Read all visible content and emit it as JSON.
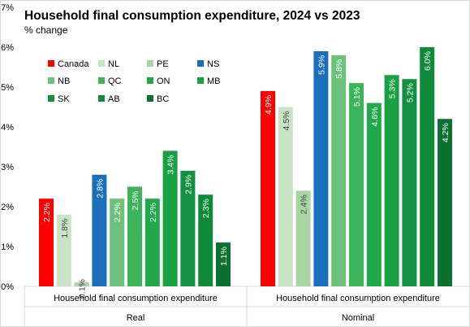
{
  "chart_data": {
    "type": "bar",
    "title": "Household final consumption expenditure, 2024 vs 2023",
    "subtitle": "% change",
    "ylim": [
      0,
      7
    ],
    "yticks": [
      "0%",
      "1%",
      "2%",
      "3%",
      "4%",
      "5%",
      "6%",
      "7%"
    ],
    "grid": false,
    "legend_position": "top-left (inside plot)",
    "categories": [
      "Household final consumption expenditure",
      "Household final consumption expenditure"
    ],
    "groups": [
      "Real",
      "Nominal"
    ],
    "series": [
      {
        "name": "Canada",
        "color": "#ff0000",
        "values": [
          2.2,
          4.9
        ],
        "labels": [
          "2.2%",
          "4.9%"
        ]
      },
      {
        "name": "NL",
        "color": "#c9e4c5",
        "values": [
          1.8,
          4.5
        ],
        "labels": [
          "1.8%",
          "4.5%"
        ]
      },
      {
        "name": "PE",
        "color": "#a8d5a2",
        "values": [
          0.1,
          2.4
        ],
        "labels": [
          "0.1%",
          "2.4%"
        ]
      },
      {
        "name": "NS",
        "color": "#1a6fba",
        "values": [
          2.8,
          5.9
        ],
        "labels": [
          "2.8%",
          "5.9%"
        ]
      },
      {
        "name": "NB",
        "color": "#6cc27a",
        "values": [
          2.2,
          5.8
        ],
        "labels": [
          "2.2%",
          "5.8%"
        ]
      },
      {
        "name": "QC",
        "color": "#3cb55a",
        "values": [
          2.5,
          5.1
        ],
        "labels": [
          "2.5%",
          "5.1%"
        ]
      },
      {
        "name": "ON",
        "color": "#21a84a",
        "values": [
          2.2,
          4.6
        ],
        "labels": [
          "2.2%",
          "4.6%"
        ]
      },
      {
        "name": "MB",
        "color": "#18a043",
        "values": [
          3.4,
          5.3
        ],
        "labels": [
          "3.4%",
          "5.3%"
        ]
      },
      {
        "name": "SK",
        "color": "#139040",
        "values": [
          2.9,
          5.2
        ],
        "labels": [
          "2.9%",
          "5.2%"
        ]
      },
      {
        "name": "AB",
        "color": "#0e8a3a",
        "values": [
          2.3,
          6.0
        ],
        "labels": [
          "2.3%",
          "6.0%"
        ]
      },
      {
        "name": "BC",
        "color": "#0b7030",
        "values": [
          1.1,
          4.2
        ],
        "labels": [
          "1.1%",
          "4.2%"
        ]
      }
    ]
  }
}
